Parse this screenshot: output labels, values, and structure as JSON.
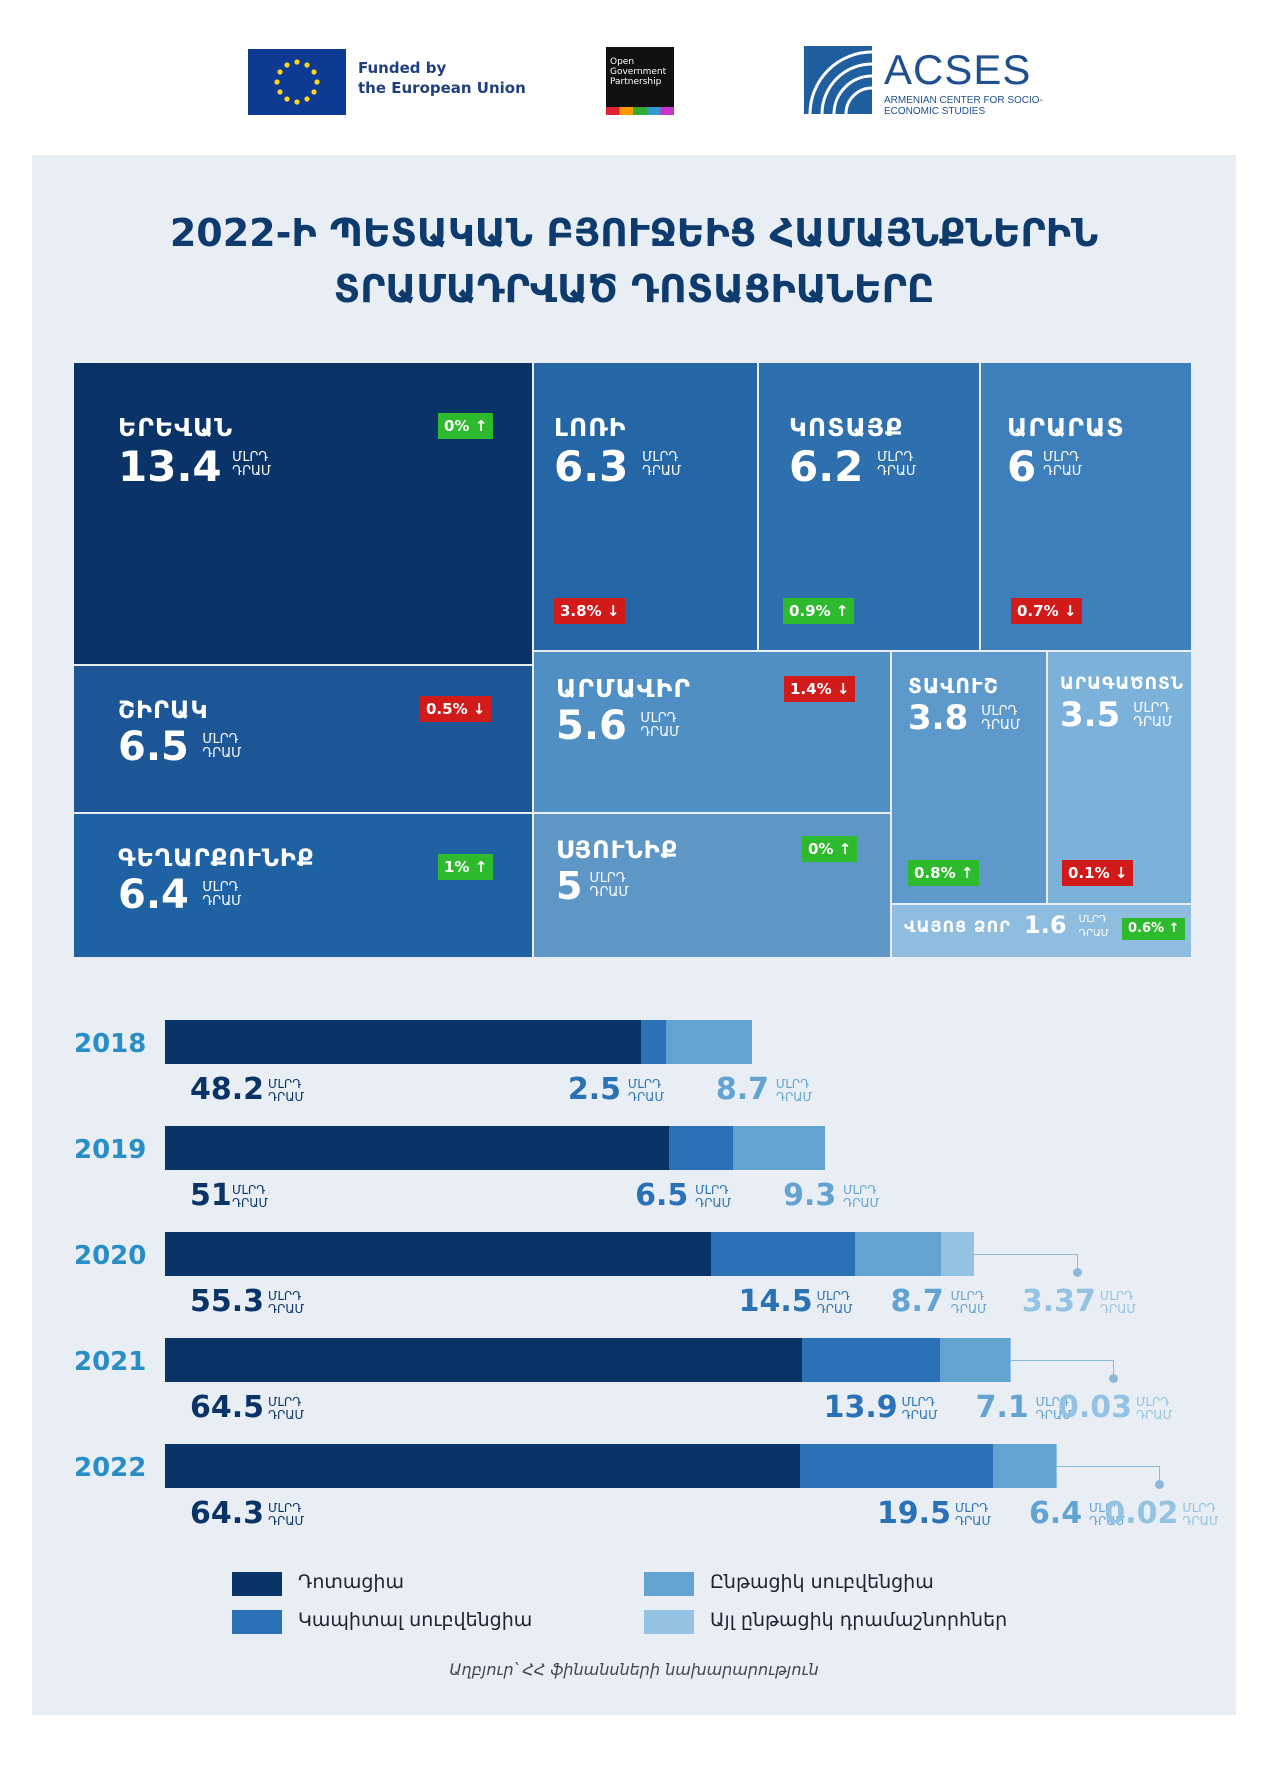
{
  "header": {
    "eu_line1": "Funded by",
    "eu_line2": "the European Union",
    "ogp_text": "Open Government Partnership",
    "acses_name": "ACSES",
    "acses_sub": "ARMENIAN CENTER FOR SOCIO-ECONOMIC STUDIES"
  },
  "title_line1": "2022-Ի ՊԵՏԱԿԱՆ ԲՅՈՒՋԵԻՑ ՀԱՄԱՅՆՔՆԵՐԻՆ",
  "title_line2": "ՏՐԱՄԱԴՐՎԱԾ ԴՈՏԱՑԻԱՆԵՐԸ",
  "unit_line1": "ՄԼՐԴ",
  "unit_line2": "ԴՐԱՄ",
  "colors": {
    "dotation": "#0a3468",
    "capital": "#2a72b5",
    "current": "#62a3d1",
    "other": "#93c2e2",
    "up": "#2dbb2d",
    "down": "#d11a1a"
  },
  "chart_data": [
    {
      "type": "treemap",
      "title": "2022-Ի ՊԵՏԱԿԱՆ ԲՅՈՒՋԵԻՑ ՀԱՄԱՅՆՔՆԵՐԻՆ ՏՐԱՄԱԴՐՎԱԾ ԴՈՏԱՑԻԱՆԵՐԸ",
      "unit": "ՄԼՐԴ ԴՐԱՄ",
      "items": [
        {
          "name": "ԵՐԵՎԱՆ",
          "value": 13.4,
          "value_label": "13.4",
          "change": "0%",
          "direction": "up"
        },
        {
          "name": "ԼՈՌԻ",
          "value": 6.3,
          "value_label": "6.3",
          "change": "3.8%",
          "direction": "down"
        },
        {
          "name": "ԿՈՏԱՅՔ",
          "value": 6.2,
          "value_label": "6.2",
          "change": "0.9%",
          "direction": "up"
        },
        {
          "name": "ԱՐԱՐԱՏ",
          "value": 6,
          "value_label": "6",
          "change": "0.7%",
          "direction": "down"
        },
        {
          "name": "ՇԻՐԱԿ",
          "value": 6.5,
          "value_label": "6.5",
          "change": "0.5%",
          "direction": "down"
        },
        {
          "name": "ԱՐՄԱՎԻՐ",
          "value": 5.6,
          "value_label": "5.6",
          "change": "1.4%",
          "direction": "down"
        },
        {
          "name": "ՏԱՎՈՒՇ",
          "value": 3.8,
          "value_label": "3.8",
          "change": "0.8%",
          "direction": "up"
        },
        {
          "name": "ԱՐԱԳԱԾՈՏՆ",
          "value": 3.5,
          "value_label": "3.5",
          "change": "0.1%",
          "direction": "down"
        },
        {
          "name": "ԳԵՂԱՐՔՈՒՆԻՔ",
          "value": 6.4,
          "value_label": "6.4",
          "change": "1%",
          "direction": "up"
        },
        {
          "name": "ՍՅՈՒՆԻՔ",
          "value": 5,
          "value_label": "5",
          "change": "0%",
          "direction": "up"
        },
        {
          "name": "ՎԱՅՈՑ ՁՈՐ",
          "value": 1.6,
          "value_label": "1.6",
          "change": "0.6%",
          "direction": "up"
        }
      ]
    },
    {
      "type": "bar",
      "orientation": "horizontal",
      "stacked": true,
      "unit": "ՄԼՐԴ ԴՐԱՄ",
      "categories": [
        "2018",
        "2019",
        "2020",
        "2021",
        "2022"
      ],
      "series": [
        {
          "name": "Դոտացիա",
          "values": [
            48.2,
            51,
            55.3,
            64.5,
            64.3
          ],
          "labels": [
            "48.2",
            "51",
            "55.3",
            "64.5",
            "64.3"
          ]
        },
        {
          "name": "Կապիտալ սուբվենցիա",
          "values": [
            2.5,
            6.5,
            14.5,
            13.9,
            19.5
          ],
          "labels": [
            "2.5",
            "6.5",
            "14.5",
            "13.9",
            "19.5"
          ]
        },
        {
          "name": "Ընթացիկ սուբվենցիա",
          "values": [
            8.7,
            9.3,
            8.7,
            7.1,
            6.4
          ],
          "labels": [
            "8.7",
            "9.3",
            "8.7",
            "7.1",
            "6.4"
          ]
        },
        {
          "name": "Այլ ընթացիկ դրամաշնորհներ",
          "values": [
            0,
            0,
            3.37,
            0.03,
            0.02
          ],
          "labels": [
            "",
            "",
            "3.37",
            "0.03",
            "0.02"
          ]
        }
      ],
      "legend_position": "bottom"
    }
  ],
  "source": "Աղբյուր՝ ՀՀ ֆինանսների նախարարություն"
}
